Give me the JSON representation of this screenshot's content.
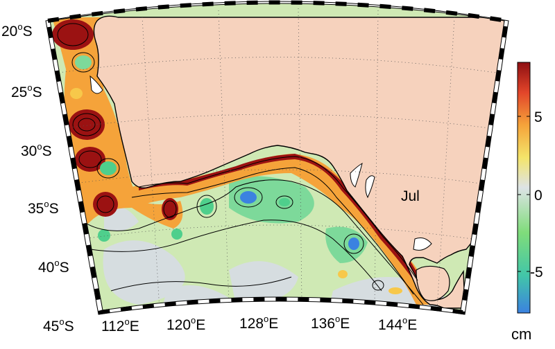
{
  "map": {
    "month_label": "Jul",
    "lat_labels": [
      {
        "deg": "20",
        "hem": "S"
      },
      {
        "deg": "25",
        "hem": "S"
      },
      {
        "deg": "30",
        "hem": "S"
      },
      {
        "deg": "35",
        "hem": "S"
      },
      {
        "deg": "40",
        "hem": "S"
      },
      {
        "deg": "45",
        "hem": "S"
      }
    ],
    "lon_labels": [
      {
        "deg": "112",
        "hem": "E"
      },
      {
        "deg": "120",
        "hem": "E"
      },
      {
        "deg": "128",
        "hem": "E"
      },
      {
        "deg": "136",
        "hem": "E"
      },
      {
        "deg": "144",
        "hem": "E"
      }
    ],
    "colors": {
      "land": "#f6d2bd",
      "ocean_neutral": "#d6dde0",
      "positive_strong": "#9b1212",
      "positive_mid": "#e8552a",
      "positive_weak": "#f7c84a",
      "negative_weak": "#c6e8a6",
      "negative_mid": "#4fcf8c",
      "negative_strong": "#3b82e0"
    }
  },
  "colorbar": {
    "unit": "cm",
    "ticks": [
      "5",
      "0",
      "-5"
    ],
    "range": [
      -8,
      8
    ]
  }
}
